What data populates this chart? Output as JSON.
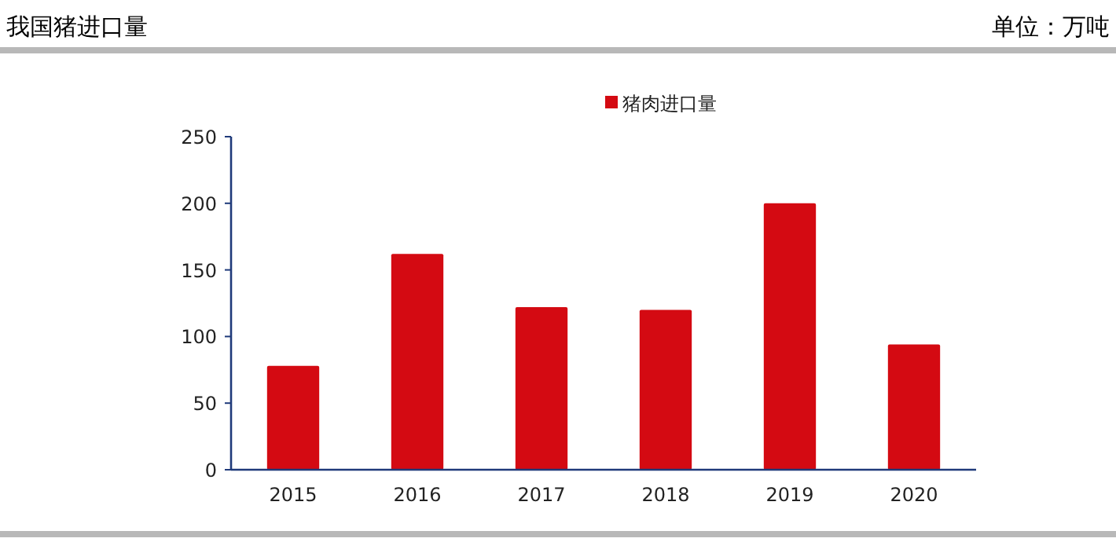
{
  "chart_data": {
    "type": "bar",
    "title": "我国猪进口量",
    "annotations": [
      "单位：万吨"
    ],
    "categories": [
      "2015",
      "2016",
      "2017",
      "2018",
      "2019",
      "2020"
    ],
    "series": [
      {
        "name": "猪肉进口量",
        "color": "#d40a12",
        "values": [
          78,
          162,
          122,
          120,
          200,
          94
        ]
      }
    ],
    "ylim": [
      0,
      250
    ],
    "yticks": [
      0,
      50,
      100,
      150,
      200,
      250
    ],
    "grid": false,
    "legend": "top"
  }
}
